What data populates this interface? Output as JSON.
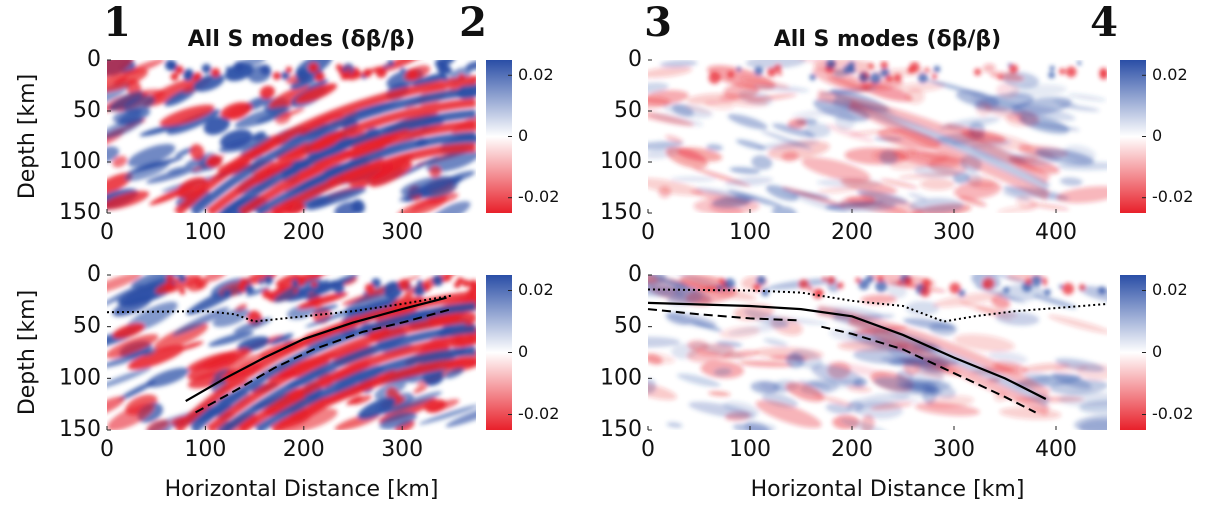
{
  "chart_data": [
    {
      "type": "heatmap",
      "title": "All S modes (δβ/β)",
      "annotations": [
        "1",
        "2"
      ],
      "ylabel": "Depth [km]",
      "xlim": [
        0,
        375
      ],
      "xticks": [
        0,
        100,
        200,
        300
      ],
      "ylim": [
        150,
        0
      ],
      "yticks": [
        0,
        50,
        100,
        150
      ],
      "colorbar": {
        "lim": [
          -0.025,
          0.025
        ],
        "ticks": [
          0.02,
          0,
          -0.02
        ],
        "colors": [
          "#e8202a",
          "#ffffff",
          "#2a4ea6"
        ]
      },
      "series": []
    },
    {
      "type": "heatmap",
      "title": "All S modes (δβ/β)",
      "annotations": [
        "3",
        "4"
      ],
      "xlim": [
        0,
        450
      ],
      "xticks": [
        0,
        100,
        200,
        300,
        400
      ],
      "ylim": [
        150,
        0
      ],
      "yticks": [
        0,
        50,
        100,
        150
      ],
      "colorbar": {
        "lim": [
          -0.025,
          0.025
        ],
        "ticks": [
          0.02,
          0,
          -0.02
        ],
        "colors": [
          "#e8202a",
          "#ffffff",
          "#2a4ea6"
        ]
      },
      "series": []
    },
    {
      "type": "heatmap",
      "ylabel": "Depth [km]",
      "xlabel": "Horizontal Distance [km]",
      "xlim": [
        0,
        375
      ],
      "xticks": [
        0,
        100,
        200,
        300
      ],
      "ylim": [
        150,
        0
      ],
      "yticks": [
        0,
        50,
        100,
        150
      ],
      "colorbar": {
        "lim": [
          -0.025,
          0.025
        ],
        "ticks": [
          0.02,
          0,
          -0.02
        ],
        "colors": [
          "#e8202a",
          "#ffffff",
          "#2a4ea6"
        ]
      },
      "series": [
        {
          "color": "#000000",
          "linestyle": "dotted",
          "x": [
            0,
            100,
            130,
            150,
            200,
            250,
            300,
            350
          ],
          "values": [
            36,
            35,
            38,
            45,
            40,
            35,
            28,
            20
          ]
        },
        {
          "color": "#000000",
          "linestyle": "solid",
          "x": [
            80,
            120,
            160,
            200,
            250,
            300,
            345
          ],
          "values": [
            122,
            100,
            80,
            62,
            46,
            33,
            22
          ]
        },
        {
          "color": "#000000",
          "linestyle": "dashed",
          "x": [
            90,
            130,
            170,
            210,
            260,
            300,
            350
          ],
          "values": [
            133,
            112,
            90,
            72,
            55,
            46,
            33
          ]
        }
      ]
    },
    {
      "type": "heatmap",
      "xlabel": "Horizontal Distance [km]",
      "xlim": [
        0,
        450
      ],
      "xticks": [
        0,
        100,
        200,
        300,
        400
      ],
      "ylim": [
        150,
        0
      ],
      "yticks": [
        0,
        50,
        100,
        150
      ],
      "colorbar": {
        "lim": [
          -0.025,
          0.025
        ],
        "ticks": [
          0.02,
          0,
          -0.02
        ],
        "colors": [
          "#e8202a",
          "#ffffff",
          "#2a4ea6"
        ]
      },
      "series": [
        {
          "color": "#000000",
          "linestyle": "dotted",
          "x": [
            0,
            100,
            150,
            200,
            250,
            290,
            320,
            360,
            400,
            450
          ],
          "values": [
            14,
            15,
            17,
            25,
            30,
            45,
            40,
            35,
            32,
            28
          ]
        },
        {
          "color": "#000000",
          "linestyle": "solid",
          "x": [
            0,
            100,
            150,
            200,
            250,
            300,
            350,
            390
          ],
          "values": [
            27,
            30,
            33,
            40,
            58,
            80,
            100,
            120
          ]
        },
        {
          "color": "#000000",
          "linestyle": "dashed",
          "x": [
            0,
            50,
            100,
            150,
            160,
            170,
            200,
            250,
            300,
            350,
            380
          ],
          "values": [
            33,
            38,
            42,
            44,
            null,
            50,
            57,
            72,
            95,
            118,
            133
          ]
        }
      ]
    }
  ]
}
